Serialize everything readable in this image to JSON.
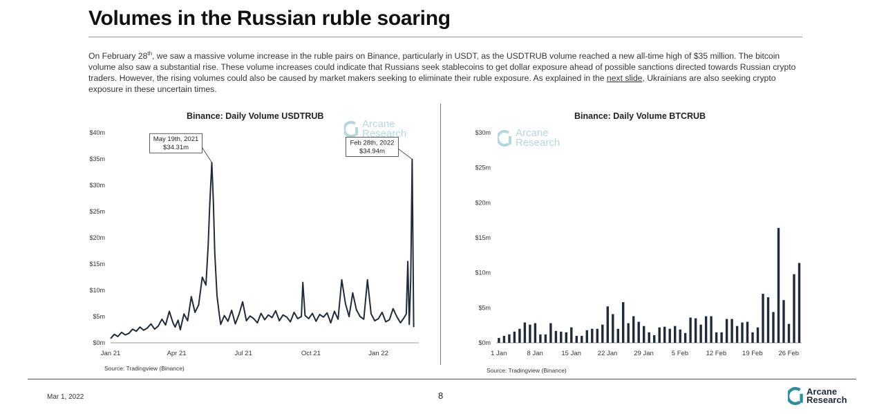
{
  "slide": {
    "title": "Volumes in the Russian ruble soaring",
    "intro": {
      "p1": "On February 28",
      "p1_sup": "th",
      "p2": ", we saw a massive volume increase in the ruble pairs on Binance, particularly in USDT, as the USDTRUB volume reached a new all-time high of $35 million. The bitcoin volume also saw a substantial rise. These volume increases could indicate that Russians seek stablecoins to get dollar exposure ahead of possible sanctions directed towards Russian crypto traders. However, the rising volumes could also be caused by market makers seeking to eliminate their ruble exposure. As explained in the ",
      "link": "next slide",
      "p3": ", Ukrainians are also seeking crypto exposure in these uncertain times."
    },
    "footer": {
      "date": "Mar 1, 2022",
      "page": "8",
      "brand_line1": "Arcane",
      "brand_line2": "Research"
    },
    "watermark": {
      "line1": "Arcane",
      "line2": "Research"
    },
    "colors": {
      "line": "#1f2a3a",
      "bar": "#1f2a3a",
      "accent": "#2a8fa3",
      "axis": "#999999"
    }
  },
  "chart_data": [
    {
      "type": "line",
      "title": "Binance: Daily Volume USDTRUB",
      "source": "Source: Tradingview (Binance)",
      "ylim": [
        0,
        40
      ],
      "y_ticks": [
        "$0m",
        "$5m",
        "$10m",
        "$15m",
        "$20m",
        "$25m",
        "$30m",
        "$35m",
        "$40m"
      ],
      "x_ticks": [
        {
          "label": "Jan 21",
          "day": 0
        },
        {
          "label": "Apr 21",
          "day": 90
        },
        {
          "label": "Jul 21",
          "day": 181
        },
        {
          "label": "Oct 21",
          "day": 273
        },
        {
          "label": "Jan 22",
          "day": 365
        }
      ],
      "x_range_days": [
        0,
        420
      ],
      "series": [
        {
          "x_days": [
            0,
            5,
            10,
            15,
            20,
            25,
            30,
            35,
            40,
            45,
            50,
            55,
            60,
            65,
            70,
            75,
            80,
            85,
            88,
            92,
            95,
            100,
            105,
            110,
            115,
            120,
            125,
            130,
            133,
            135,
            138,
            140,
            142,
            145,
            148,
            150,
            155,
            160,
            165,
            170,
            175,
            180,
            185,
            190,
            195,
            200,
            205,
            210,
            215,
            220,
            225,
            230,
            235,
            240,
            245,
            250,
            255,
            260,
            262,
            265,
            270,
            275,
            280,
            285,
            290,
            295,
            300,
            305,
            310,
            315,
            320,
            325,
            330,
            335,
            340,
            345,
            350,
            355,
            360,
            365,
            370,
            375,
            380,
            385,
            390,
            395,
            400,
            403,
            405,
            407,
            409,
            411,
            413
          ],
          "values_m": [
            0.8,
            1.6,
            1.2,
            2.0,
            1.5,
            1.8,
            2.6,
            2.2,
            3.0,
            2.4,
            2.8,
            3.6,
            2.6,
            3.2,
            4.5,
            3.4,
            6.0,
            3.8,
            3.0,
            4.3,
            2.5,
            5.5,
            4.2,
            8.8,
            5.8,
            7.2,
            12.5,
            11.0,
            18.5,
            26.0,
            34.31,
            27.0,
            17.0,
            9.0,
            5.5,
            3.5,
            5.2,
            4.1,
            6.2,
            3.6,
            5.4,
            7.8,
            4.2,
            5.1,
            4.6,
            3.8,
            5.6,
            4.4,
            5.3,
            4.8,
            6.1,
            4.2,
            5.3,
            4.9,
            4.0,
            5.8,
            4.6,
            5.0,
            11.5,
            5.2,
            4.6,
            5.6,
            4.1,
            5.4,
            4.9,
            5.7,
            3.8,
            6.0,
            4.5,
            12.0,
            7.5,
            5.0,
            9.5,
            6.3,
            5.0,
            4.5,
            12.0,
            5.5,
            4.2,
            4.6,
            5.8,
            4.0,
            4.4,
            6.5,
            5.0,
            3.8,
            4.8,
            5.5,
            15.5,
            3.5,
            12.0,
            34.94,
            3.0
          ],
          "annotations": [
            {
              "label": "May 19th, 2021",
              "value": "$34.31m"
            },
            {
              "label": "Feb 28th, 2022",
              "value": "$34.94m"
            }
          ]
        }
      ]
    },
    {
      "type": "bar",
      "title": "Binance: Daily Volume BTCRUB",
      "source": "Source: Tradingview (Binance)",
      "ylim": [
        0,
        30
      ],
      "y_ticks": [
        "$0m",
        "$5m",
        "$10m",
        "$15m",
        "$20m",
        "$25m",
        "$30m"
      ],
      "x_ticks": [
        "1 Jan",
        "8 Jan",
        "15 Jan",
        "22 Jan",
        "29 Jan",
        "5 Feb",
        "12 Feb",
        "19 Feb",
        "26 Feb"
      ],
      "categories_days": 59,
      "values": [
        0.7,
        1.0,
        1.2,
        1.6,
        2.0,
        2.9,
        2.6,
        2.8,
        1.2,
        1.2,
        2.8,
        1.7,
        1.6,
        1.5,
        2.2,
        1.0,
        1.0,
        1.8,
        2.0,
        2.0,
        2.6,
        5.2,
        4.1,
        2.0,
        5.8,
        2.8,
        3.8,
        3.0,
        2.4,
        1.5,
        1.1,
        2.2,
        2.3,
        2.0,
        2.4,
        1.9,
        1.4,
        3.6,
        3.5,
        2.6,
        3.8,
        3.8,
        1.5,
        1.5,
        3.4,
        3.4,
        2.4,
        2.9,
        3.0,
        1.5,
        2.2,
        7.0,
        6.5,
        4.4,
        16.4,
        6.1,
        2.7,
        9.8,
        11.4
      ]
    }
  ]
}
